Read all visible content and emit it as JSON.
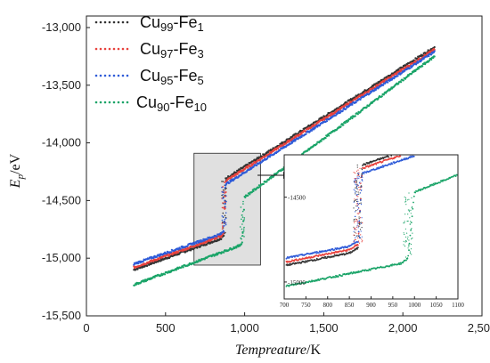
{
  "chart_data": {
    "type": "scatter",
    "title": "",
    "xlabel": "Tempreature",
    "xlabel_unit": "/K",
    "ylabel_main": "E",
    "ylabel_sub": "p",
    "ylabel_unit": "/eV",
    "xlim": [
      0,
      2500
    ],
    "ylim": [
      -15500,
      -12900
    ],
    "x_ticks": [
      0,
      500,
      1000,
      1500,
      2000,
      2500
    ],
    "x_tick_labels": [
      "0",
      "500",
      "1,000",
      "1,500",
      "2,000",
      "2,500"
    ],
    "y_ticks": [
      -13000,
      -13500,
      -14000,
      -14500,
      -15000,
      -15500
    ],
    "y_tick_labels": [
      "-13,000",
      "-13,500",
      "-14,000",
      "-14,500",
      "-15,000",
      "-15,500"
    ],
    "legend_position": "top-left",
    "series": [
      {
        "name": "Cu99-Fe1",
        "base": "Cu",
        "base_sub": "99",
        "dopant": "-Fe",
        "dopant_sub": "1",
        "color": "#333333",
        "x": [
          300,
          850,
          870,
          880,
          2200
        ],
        "y": [
          -15100,
          -14830,
          -14800,
          -14310,
          -13170
        ]
      },
      {
        "name": "Cu97-Fe3",
        "base": "Cu",
        "base_sub": "97",
        "dopant": "-Fe",
        "dopant_sub": "3",
        "color": "#e8413c",
        "x": [
          300,
          850,
          870,
          880,
          2200
        ],
        "y": [
          -15080,
          -14810,
          -14780,
          -14330,
          -13190
        ]
      },
      {
        "name": "Cu95-Fe5",
        "base": "Cu",
        "base_sub": "95",
        "dopant": "-Fe",
        "dopant_sub": "5",
        "color": "#2e5bd8",
        "x": [
          300,
          850,
          870,
          880,
          2200
        ],
        "y": [
          -15050,
          -14790,
          -14760,
          -14360,
          -13210
        ]
      },
      {
        "name": "Cu90-Fe10",
        "base": "Cu",
        "base_sub": "90",
        "dopant": "-Fe",
        "dopant_sub": "10",
        "color": "#1aa468",
        "x": [
          300,
          970,
          985,
          1000,
          2200
        ],
        "y": [
          -15230,
          -14890,
          -14860,
          -14470,
          -13250
        ]
      }
    ],
    "inset": {
      "xlim": [
        700,
        1100
      ],
      "ylim": [
        -15100,
        -14250
      ],
      "x_ticks": [
        700,
        750,
        800,
        850,
        900,
        950,
        1000,
        1050,
        1100
      ],
      "x_tick_labels": [
        "700",
        "750",
        "800",
        "850",
        "900",
        "950",
        "1000",
        "1050",
        "1100"
      ],
      "y_ticks": [
        -14500,
        -15000
      ],
      "y_tick_labels": [
        "-14500",
        "-15000"
      ]
    },
    "highlight_region": {
      "x": [
        680,
        1100
      ],
      "y": [
        -15060,
        -14090
      ]
    }
  },
  "colors": {
    "highlight_fill": "#cccccc",
    "axis": "#222222"
  }
}
